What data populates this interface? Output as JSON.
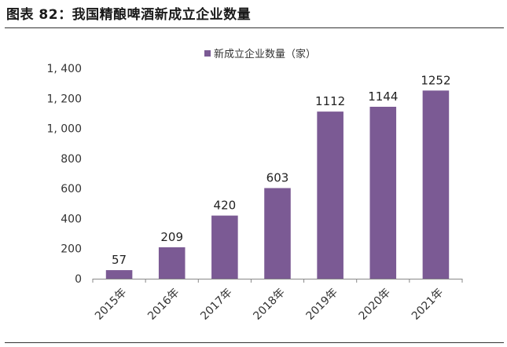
{
  "figure_title": "图表 82：我国精酿啤酒新成立企业数量",
  "chart_data": {
    "type": "bar",
    "categories": [
      "2015年",
      "2016年",
      "2017年",
      "2018年",
      "2019年",
      "2020年",
      "2021年"
    ],
    "series": [
      {
        "name": "新成立企业数量（家）",
        "values": [
          57,
          209,
          420,
          603,
          1112,
          1144,
          1252
        ]
      }
    ],
    "data_labels": [
      "57",
      "209",
      "420",
      "603",
      "1112",
      "1144",
      "1252"
    ],
    "ylim": [
      0,
      1400
    ],
    "yticks": [
      0,
      200,
      400,
      600,
      800,
      1000,
      1200,
      1400
    ],
    "ytick_labels": [
      "0",
      "200",
      "400",
      "600",
      "800",
      "1, 000",
      "1, 200",
      "1, 400"
    ],
    "xlabel": "",
    "ylabel": "",
    "grid": false,
    "legend_position": "top",
    "bar_color": "#7b5a94"
  }
}
